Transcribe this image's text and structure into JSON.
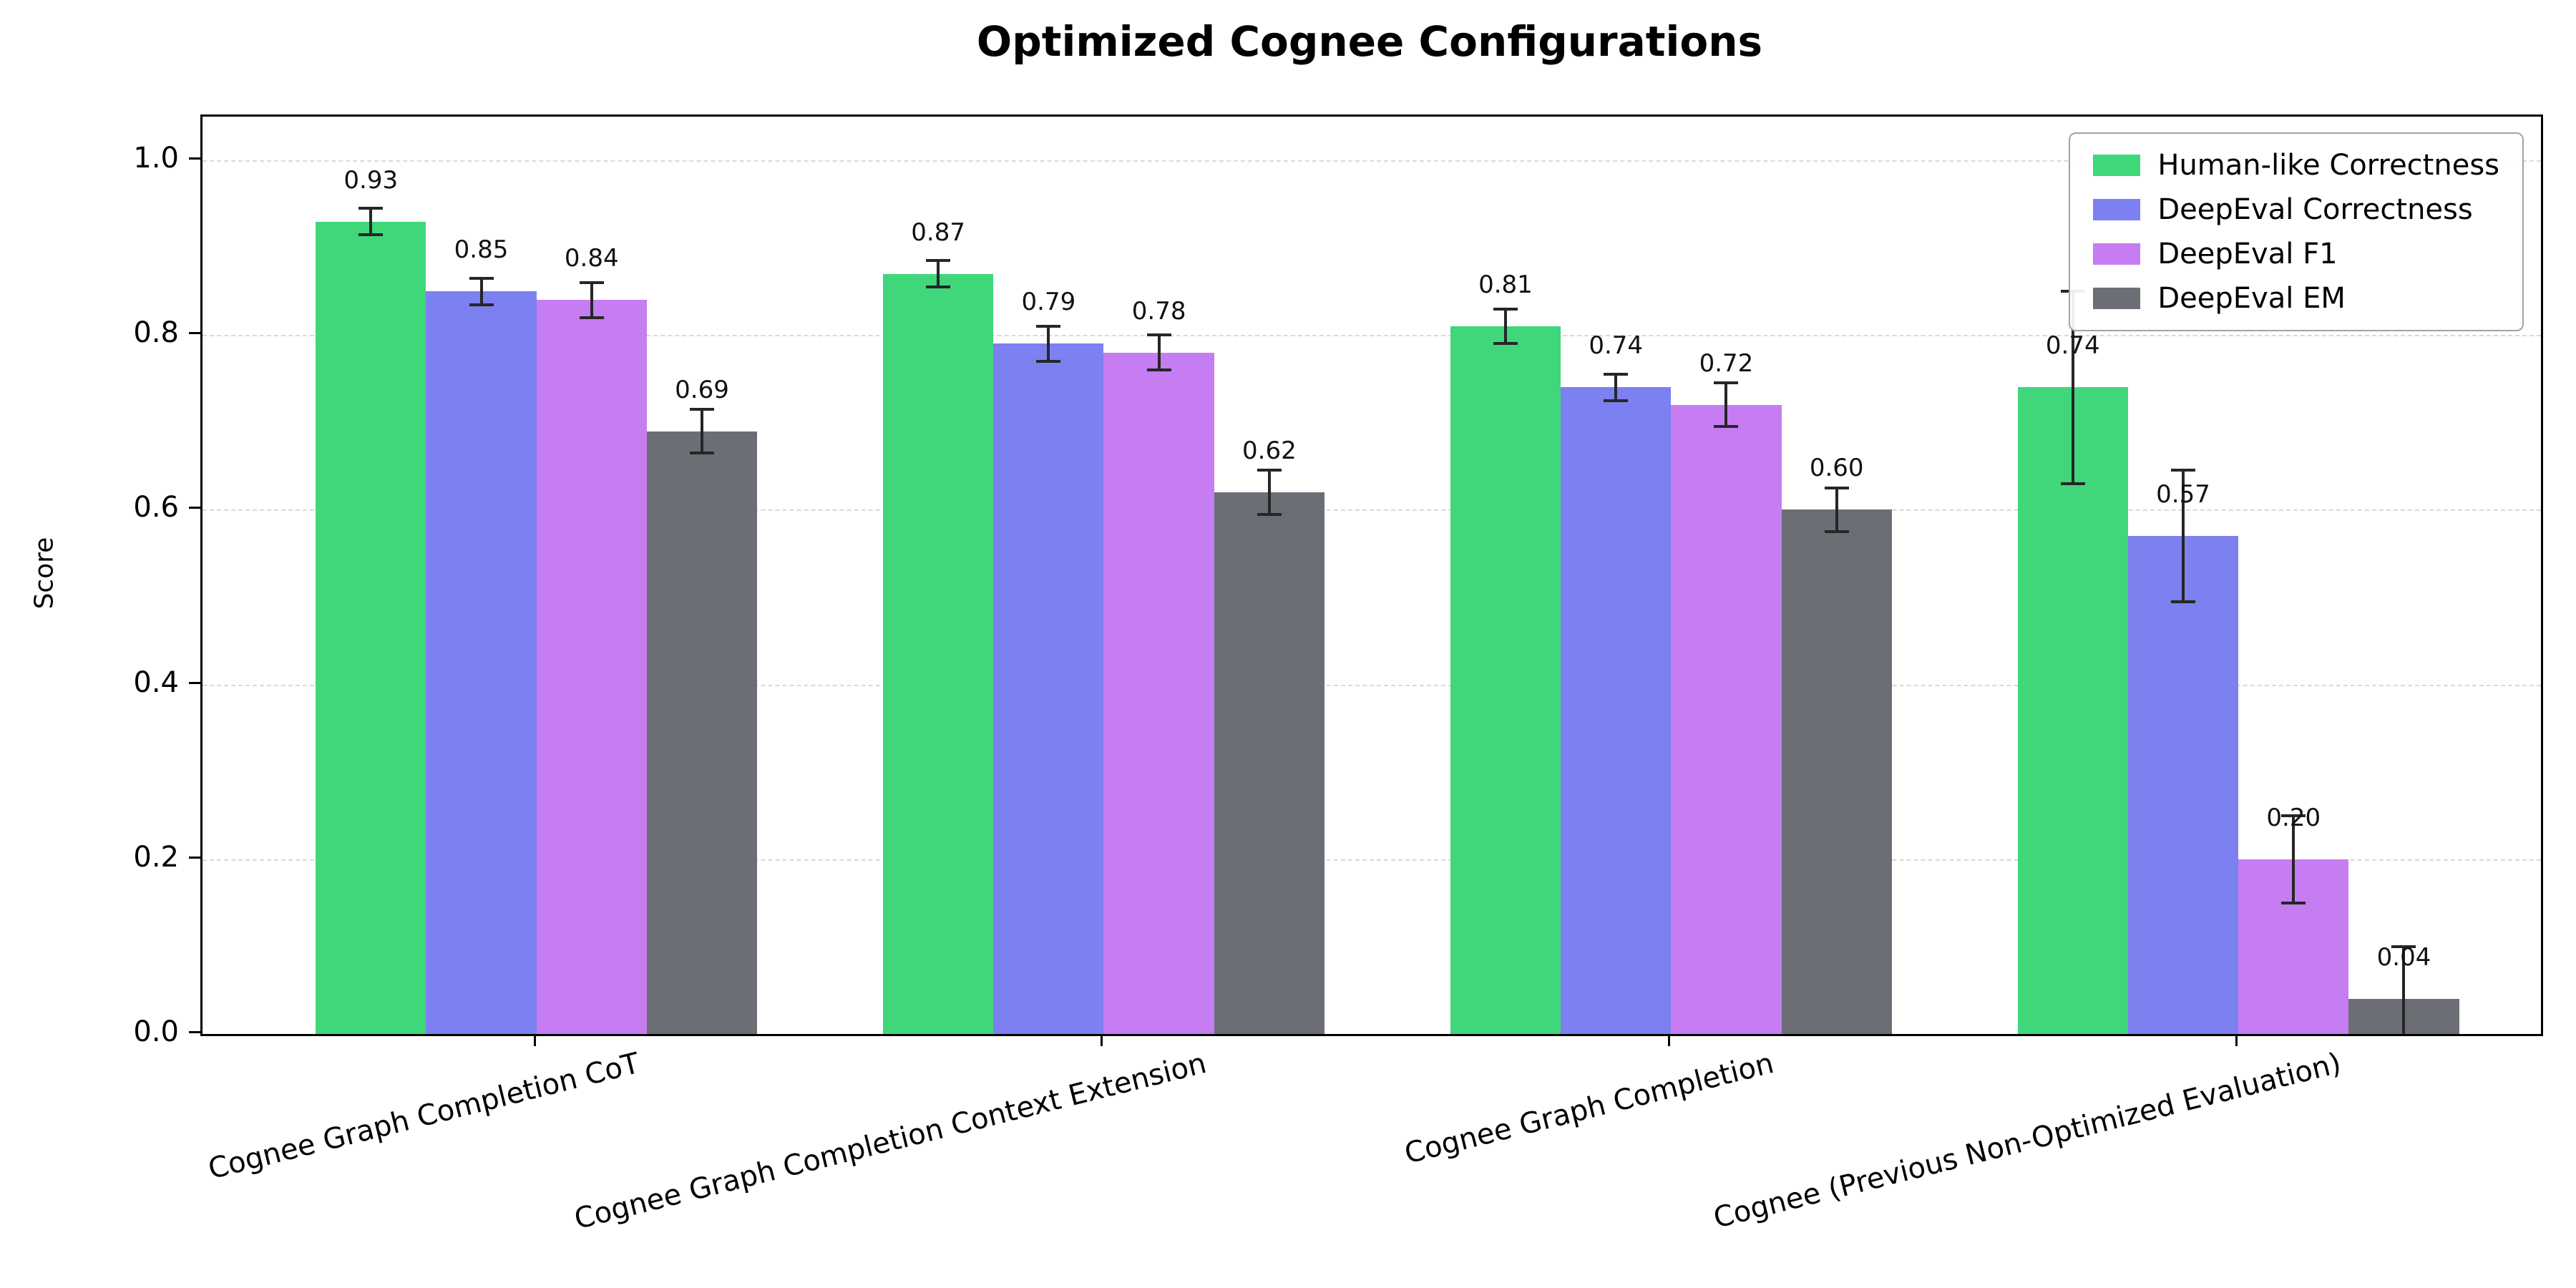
{
  "chart_data": {
    "type": "bar",
    "title": "Optimized Cognee Configurations",
    "xlabel": "",
    "ylabel": "Score",
    "ylim": [
      0,
      1.05
    ],
    "yticks": [
      0.0,
      0.2,
      0.4,
      0.6,
      0.8,
      1.0
    ],
    "grid": {
      "axis": "y",
      "style": "dashed",
      "color": "#d9d9d9"
    },
    "legend": {
      "position": "upper right",
      "entries": [
        "Human-like Correctness",
        "DeepEval Correctness",
        "DeepEval F1",
        "DeepEval EM"
      ]
    },
    "value_labels": true,
    "error_bars": true,
    "categories": [
      "Cognee Graph Completion CoT",
      "Cognee Graph Completion Context Extension",
      "Cognee Graph Completion",
      "Cognee (Previous Non-Optimized Evaluation)"
    ],
    "series": [
      {
        "name": "Human-like Correctness",
        "color": "#3fd77a",
        "values": [
          0.93,
          0.87,
          0.81,
          0.74
        ],
        "errors": [
          0.015,
          0.015,
          0.02,
          0.11
        ]
      },
      {
        "name": "DeepEval Correctness",
        "color": "#7c80f0",
        "values": [
          0.85,
          0.79,
          0.74,
          0.57
        ],
        "errors": [
          0.015,
          0.02,
          0.015,
          0.075
        ]
      },
      {
        "name": "DeepEval F1",
        "color": "#c57df1",
        "values": [
          0.84,
          0.78,
          0.72,
          0.2
        ],
        "errors": [
          0.02,
          0.02,
          0.025,
          0.05
        ]
      },
      {
        "name": "DeepEval EM",
        "color": "#6b6e75",
        "values": [
          0.69,
          0.62,
          0.6,
          0.04
        ],
        "errors": [
          0.025,
          0.025,
          0.025,
          0.06
        ]
      }
    ],
    "error_bar_color": "#262626"
  }
}
